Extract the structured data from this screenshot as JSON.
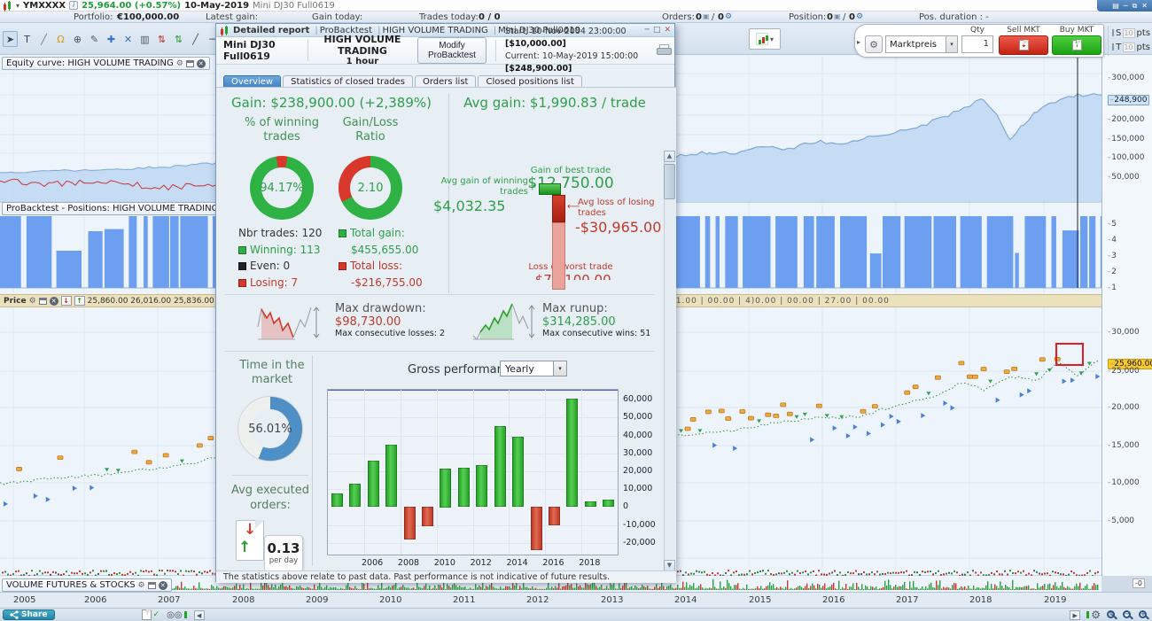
{
  "icons": {
    "minimize": "─",
    "maximize": "□",
    "close": "✕",
    "restore": "⧉",
    "menu": "▤",
    "caret_down": "▾",
    "info": "i",
    "handle": "▸",
    "scroll_up": "▲",
    "scroll_down": "▼",
    "scroll_left": "◀",
    "scroll_right": "▶",
    "up_arrow": "↑",
    "down_arrow": "↓",
    "gear": "⚙",
    "check": "✓",
    "watch": "◎◎"
  },
  "titlebar": {
    "ticker": "YMXXXX",
    "price": "25,964.00 (+0.57%)",
    "date": "10-May-2019",
    "instrument": "Mini DJ30 Full0619"
  },
  "statusbar": {
    "portfolio_label": "Portfolio:",
    "portfolio_value": "€100,000.00",
    "latest_gain_label": "Latest gain:",
    "gain_today_label": "Gain today:",
    "trades_today_label": "Trades today:",
    "trades_today_value": "0 / 0",
    "orders_label": "Orders:",
    "orders_value_a": "0",
    "orders_value_b": "0",
    "position_label": "Position:",
    "position_value_a": "0",
    "position_value_b": "0",
    "pos_duration_label": "Pos. duration : -"
  },
  "toolbar": {
    "icons": [
      {
        "name": "pointer-tool-icon",
        "glyph": "➤",
        "color": "#334455"
      },
      {
        "name": "text-tool-icon",
        "glyph": "T",
        "color": "#334455"
      },
      {
        "name": "trendline-tool-icon",
        "glyph": "╱",
        "color": "#667788"
      },
      {
        "name": "alert-bell-icon",
        "glyph": "Ω",
        "color": "#d49a1a"
      },
      {
        "name": "zoom-tool-icon",
        "glyph": "⊕",
        "color": "#445566"
      },
      {
        "name": "draw-tool-icon",
        "glyph": "✎",
        "color": "#556"
      },
      {
        "name": "crosshair-tool-icon",
        "glyph": "✚",
        "color": "#3a6fd0"
      },
      {
        "name": "delete-point-tool-icon",
        "glyph": "✕",
        "color": "#3a6fd0"
      },
      {
        "name": "trash-icon",
        "glyph": "▥",
        "color": "#556"
      },
      {
        "name": "pattern-bearish-icon",
        "glyph": "⇅",
        "color": "#c03030"
      },
      {
        "name": "pattern-bullish-icon",
        "glyph": "⇅",
        "color": "#2d9e2d"
      },
      {
        "name": "segment-tool-icon",
        "glyph": "╱",
        "color": "#445"
      },
      {
        "name": "horizontal-line-tool-icon",
        "glyph": "─",
        "color": "#445"
      }
    ]
  },
  "trade_panel": {
    "order_type": "Marktpreis",
    "qty_label": "Qty",
    "qty_value": "1",
    "sell_label": "Sell MKT",
    "buy_label": "Buy MKT",
    "s_label": "S",
    "s_value": "10",
    "t_label": "T",
    "t_value": "10",
    "pts": "pts"
  },
  "panels": {
    "equity": {
      "title": "Equity curve: HIGH VOLUME TRADING",
      "axis": [
        "300,000",
        "248,900",
        "200,000",
        "150,000",
        "100,000",
        "50,000"
      ],
      "highlight_index": 1
    },
    "positions": {
      "title": "ProBacktest - Positions: HIGH VOLUME TRADING",
      "axis": [
        "5",
        "4",
        "3",
        "2",
        "1"
      ]
    },
    "price": {
      "title": "Price",
      "info": "25,860.00 26,016.00 25,836.00 25,964.00 (+0.57%) 25,364.00 0 0",
      "times": "16.00 | 00.00 | 16.00 | 00.00 | 16.00 | 00.00 | 89.00 | ,357.00 | 11.00 | 00.00 | 4)0.00 | 00.00 | 27.00 | 00.00",
      "axis": [
        "30,000",
        "25,960.00",
        "25,000",
        "20,000",
        "15,000",
        "10,000",
        "5,000"
      ],
      "highlight_index": 1
    },
    "volume": {
      "title": "VOLUME FUTURES & STOCKS",
      "axis_zero": "-0"
    },
    "timeline_years": [
      "2005",
      "2006",
      "2007",
      "2008",
      "2009",
      "2010",
      "2011",
      "2012",
      "2013",
      "2014",
      "2015",
      "2016",
      "2017",
      "2018",
      "2019"
    ]
  },
  "bottombar": {
    "share_label": "Share"
  },
  "dialog": {
    "title_parts": [
      "Detailed report",
      "ProBacktest",
      "HIGH VOLUME TRADING",
      "Mini DJ30 Full0619"
    ],
    "instrument": "Mini DJ30 Full0619",
    "strategy": "HIGH VOLUME TRADING",
    "timeframe": "1 hour",
    "modify_button": "Modify ProBacktest",
    "start_label": "Start:",
    "start_value": "10-Nov-2004 23:00:00",
    "start_capital": "[$10,000.00]",
    "current_label": "Current:",
    "current_value": "10-May-2019 15:00:00",
    "current_capital": "[$248,900.00]",
    "tabs": [
      "Overview",
      "Statistics of closed trades",
      "Orders list",
      "Closed positions list"
    ],
    "gain_label": "Gain:",
    "gain_value": "$238,900.00 (+2,389%)",
    "avg_gain_label": "Avg gain:",
    "avg_gain_value": "$1,990.83 / trade",
    "winning": {
      "title": "% of winning trades",
      "pct": "94.17%",
      "pct_value": 94.17,
      "nbr_label": "Nbr trades:",
      "nbr": "120",
      "win_label": "Winning:",
      "win": "113",
      "even_label": "Even:",
      "even": "0",
      "lose_label": "Losing:",
      "lose": "7"
    },
    "ratio": {
      "title": "Gain/Loss Ratio",
      "value": "2.10",
      "value_num": 2.1,
      "gain_label": "Total gain:",
      "gain": "$455,655.00",
      "loss_label": "Total loss:",
      "loss": "-$216,755.00"
    },
    "trades": {
      "best_label": "Gain of best trade",
      "best": "$12,750.00",
      "avg_win_label": "Avg gain of winning trades",
      "avg_win": "$4,032.35",
      "avg_loss_label": "Avg loss of losing trades",
      "avg_loss": "-$30,965.00",
      "worst_label": "Loss of worst trade",
      "worst": "-$71,100.00"
    },
    "drawdown": {
      "label": "Max drawdown:",
      "value": "$98,730.00",
      "sub": "Max consecutive losses: 2"
    },
    "runup": {
      "label": "Max runup:",
      "value": "$314,285.00",
      "sub": "Max consecutive wins: 51"
    },
    "time_in_market": {
      "label": "Time in the market",
      "pct": "56.01%",
      "pct_value": 56.01
    },
    "avg_orders": {
      "label": "Avg executed orders:",
      "value": "0.13",
      "unit": "per day"
    },
    "gross_label": "Gross performance",
    "gross_period": "Yearly",
    "disclaimer": "The statistics above relate to past data. Past performance is not indicative of future results."
  },
  "chart_data": [
    {
      "type": "bar",
      "title": "Gross performance (Yearly)",
      "categories": [
        "2004",
        "2005",
        "2006",
        "2007",
        "2008",
        "2009",
        "2010",
        "2011",
        "2012",
        "2013",
        "2014",
        "2015",
        "2016",
        "2017",
        "2018",
        "2019"
      ],
      "values": [
        7500,
        13000,
        26000,
        35000,
        -18000,
        -10800,
        21500,
        22000,
        23500,
        45000,
        39500,
        -24000,
        -10300,
        60500,
        3300,
        4100
      ],
      "xlabel": "",
      "ylabel": "",
      "ylim": [
        -26500,
        65500
      ],
      "yticks": [
        60000,
        50000,
        40000,
        30000,
        20000,
        10000,
        0,
        -10000,
        -20000
      ],
      "ytick_labels": [
        "60,000",
        "50,000",
        "40,000",
        "30,000",
        "20,000",
        "10,000",
        "0",
        "-10,000",
        "-20,000"
      ],
      "xtick_labels": [
        "2006",
        "2008",
        "2010",
        "2012",
        "2014",
        "2016",
        "2018"
      ],
      "grid": true,
      "legend": false,
      "colors": {
        "positive": "#2eb52e",
        "negative": "#cc3b2e",
        "zero_line": "#5555dd"
      }
    },
    {
      "type": "pie",
      "title": "% of winning trades",
      "labels": [
        "Winning",
        "Losing"
      ],
      "values": [
        94.17,
        5.83
      ],
      "center_label": "94.17%",
      "colors": [
        "#2eb243",
        "#d8372a"
      ]
    },
    {
      "type": "pie",
      "title": "Gain/Loss Ratio",
      "labels": [
        "Gain share",
        "Loss share"
      ],
      "values": [
        67.7,
        32.3
      ],
      "center_label": "2.10",
      "colors": [
        "#2eb243",
        "#d8372a"
      ]
    },
    {
      "type": "pie",
      "title": "Time in the market",
      "labels": [
        "In market",
        "Out of market"
      ],
      "values": [
        56.01,
        43.99
      ],
      "center_label": "56.01%",
      "colors": [
        "#4e8fc6",
        "#eef0ee"
      ]
    }
  ]
}
